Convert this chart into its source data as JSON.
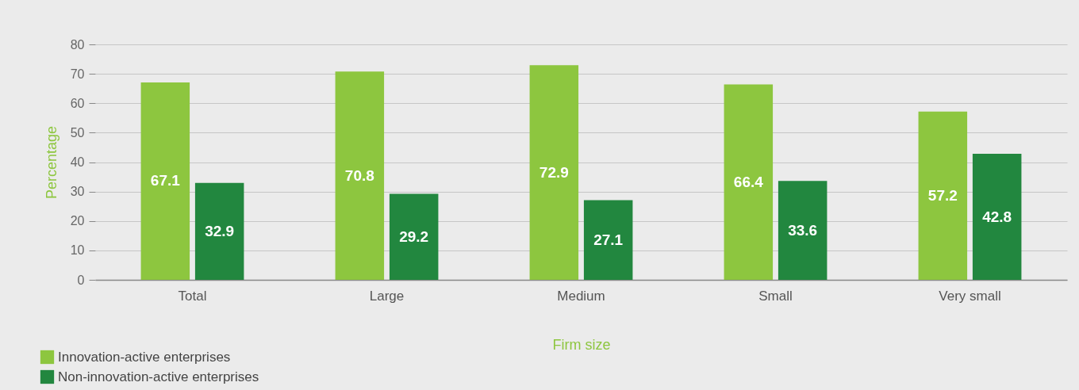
{
  "chart_data": {
    "type": "bar",
    "xlabel": "Firm size",
    "ylabel": "Percentage",
    "categories": [
      "Total",
      "Large",
      "Medium",
      "Small",
      "Very small"
    ],
    "series": [
      {
        "name": "Innovation-active enterprises",
        "color": "#8dc63f",
        "values": [
          67.1,
          70.8,
          72.9,
          66.4,
          57.2
        ]
      },
      {
        "name": "Non-innovation-active enterprises",
        "color": "#22873f",
        "values": [
          32.9,
          29.2,
          27.1,
          33.6,
          42.8
        ]
      }
    ],
    "ylim": [
      0,
      80
    ],
    "yticks": [
      0,
      10,
      20,
      30,
      40,
      50,
      60,
      70,
      80
    ],
    "grid": "y",
    "legend": "bottom left",
    "data_labels": true
  }
}
